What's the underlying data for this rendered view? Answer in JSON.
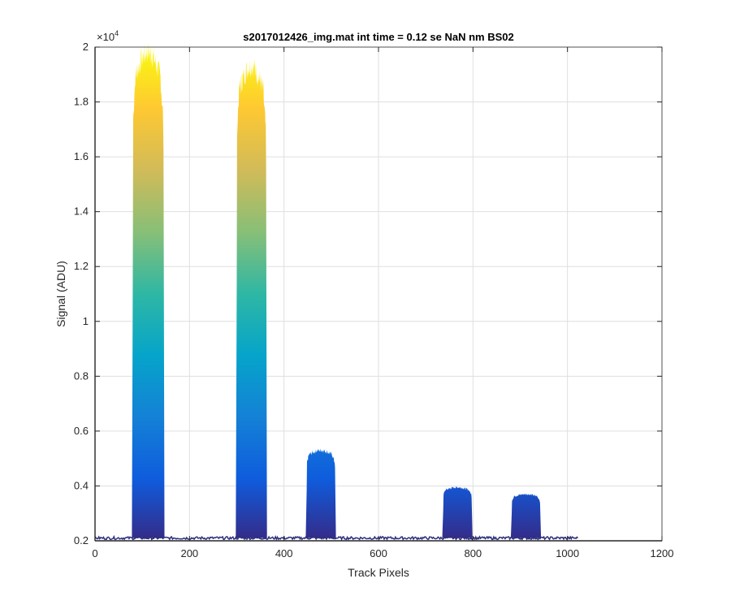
{
  "chart_data": {
    "type": "area",
    "title": "s2017012426_img.mat int time = 0.12 se  NaN nm BS02",
    "xlabel": "Track Pixels",
    "ylabel": "Signal (ADU)",
    "exponent_label": "×10",
    "exponent_power": "4",
    "xlim": [
      0,
      1200
    ],
    "ylim": [
      0.2,
      2
    ],
    "y_scale_factor": 10000,
    "x_ticks": [
      0,
      200,
      400,
      600,
      800,
      1000,
      1200
    ],
    "x_tick_labels": [
      "0",
      "200",
      "400",
      "600",
      "800",
      "1000",
      "1200"
    ],
    "y_ticks": [
      0.2,
      0.4,
      0.6,
      0.8,
      1,
      1.2,
      1.4,
      1.6,
      1.8,
      2
    ],
    "y_tick_labels": [
      "0.2",
      "0.4",
      "0.6",
      "0.8",
      "1",
      "1.2",
      "1.4",
      "1.6",
      "1.8",
      "2"
    ],
    "grid": true,
    "colormap": "parula",
    "colormap_stops": [
      "#352a87",
      "#0f5cdd",
      "#1481d6",
      "#06a4ca",
      "#2eb7a4",
      "#87bf77",
      "#d1bb59",
      "#fec832",
      "#f9fb0e"
    ],
    "line_color": "#2d2f7e",
    "baseline": 0.21,
    "data_xmax": 1022,
    "peaks": [
      {
        "x_start": 80,
        "x_end": 145,
        "peak": 1.98
      },
      {
        "x_start": 300,
        "x_end": 362,
        "peak": 1.93
      },
      {
        "x_start": 448,
        "x_end": 508,
        "peak": 0.53
      },
      {
        "x_start": 737,
        "x_end": 797,
        "peak": 0.395
      },
      {
        "x_start": 882,
        "x_end": 942,
        "peak": 0.37
      }
    ]
  }
}
